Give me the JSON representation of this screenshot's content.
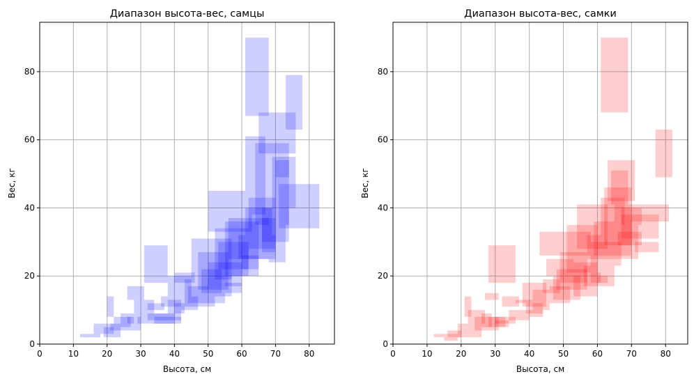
{
  "chart_data": [
    {
      "type": "rect-ranges",
      "title": "Диапазон высота-вес, самцы",
      "xlabel": "Высота, см",
      "ylabel": "Вес, кг",
      "xlim": [
        0,
        87.5
      ],
      "ylim": [
        0,
        94.5
      ],
      "xticks": [
        0,
        10,
        20,
        30,
        40,
        50,
        60,
        70,
        80
      ],
      "yticks": [
        0,
        20,
        40,
        60,
        80
      ],
      "grid": true,
      "color": "#0000ff",
      "alpha": 0.19,
      "ranges": [
        [
          61,
          68,
          67,
          90
        ],
        [
          73,
          78,
          63,
          79
        ],
        [
          65,
          76,
          56,
          68
        ],
        [
          61,
          67,
          45,
          61
        ],
        [
          64,
          74,
          35,
          59
        ],
        [
          71,
          83,
          34,
          47
        ],
        [
          69,
          76,
          40,
          55
        ],
        [
          70,
          74,
          49,
          54
        ],
        [
          50,
          63,
          33,
          45
        ],
        [
          45,
          57,
          19,
          31
        ],
        [
          52,
          62,
          20,
          34
        ],
        [
          47,
          56,
          16,
          27
        ],
        [
          56,
          68,
          25,
          37
        ],
        [
          55,
          65,
          20,
          36
        ],
        [
          53,
          62,
          22,
          30
        ],
        [
          50,
          60,
          17,
          24
        ],
        [
          62,
          70,
          28,
          43
        ],
        [
          66,
          74,
          30,
          40
        ],
        [
          59,
          70,
          25,
          32
        ],
        [
          61,
          69,
          32,
          40
        ],
        [
          66,
          70,
          27,
          37
        ],
        [
          52,
          57,
          14,
          20
        ],
        [
          48,
          54,
          15,
          22
        ],
        [
          43,
          52,
          11,
          19
        ],
        [
          44,
          55,
          12,
          17
        ],
        [
          31,
          38,
          18,
          29
        ],
        [
          38,
          45,
          14,
          20
        ],
        [
          40,
          46,
          18,
          21
        ],
        [
          26,
          31,
          13,
          17
        ],
        [
          28,
          34,
          8,
          13
        ],
        [
          36,
          42,
          11,
          14
        ],
        [
          32,
          37,
          10,
          12
        ],
        [
          38,
          42,
          7,
          13
        ],
        [
          40,
          43,
          9,
          12
        ],
        [
          20,
          22,
          8,
          14
        ],
        [
          22,
          27,
          5,
          8
        ],
        [
          21,
          26,
          4,
          6
        ],
        [
          26,
          30,
          4,
          8
        ],
        [
          29,
          38,
          6,
          8
        ],
        [
          34,
          40,
          6,
          9
        ],
        [
          32,
          38,
          7,
          9
        ],
        [
          38,
          42,
          6,
          8
        ],
        [
          16,
          22,
          3,
          6
        ],
        [
          19,
          24,
          2,
          5
        ],
        [
          12,
          15,
          2,
          3
        ],
        [
          15,
          18,
          2,
          3
        ],
        [
          24,
          28,
          6,
          9
        ],
        [
          42,
          47,
          10,
          14
        ],
        [
          55,
          60,
          15,
          18
        ],
        [
          60,
          65,
          22,
          26
        ],
        [
          63,
          67,
          38,
          45
        ],
        [
          68,
          73,
          24,
          35
        ]
      ]
    },
    {
      "type": "rect-ranges",
      "title": "Диапазон высота-вес, самки",
      "xlabel": "Высота, см",
      "ylabel": "Вес, кг",
      "xlim": [
        0,
        86.5
      ],
      "ylim": [
        0,
        94.5
      ],
      "xticks": [
        0,
        10,
        20,
        30,
        40,
        50,
        60,
        70,
        80
      ],
      "yticks": [
        0,
        20,
        40,
        60,
        80
      ],
      "grid": true,
      "color": "#ff0000",
      "alpha": 0.19,
      "ranges": [
        [
          61,
          69,
          68,
          90
        ],
        [
          77,
          82,
          49,
          63
        ],
        [
          63,
          71,
          42,
          54
        ],
        [
          67,
          73,
          35,
          40
        ],
        [
          65,
          81,
          36,
          41
        ],
        [
          67,
          78,
          31,
          38
        ],
        [
          66,
          73,
          29,
          33
        ],
        [
          54,
          63,
          28,
          41
        ],
        [
          43,
          58,
          26,
          33
        ],
        [
          51,
          60,
          21,
          35
        ],
        [
          45,
          53,
          20,
          25
        ],
        [
          49,
          57,
          18,
          27
        ],
        [
          57,
          68,
          25,
          32
        ],
        [
          47,
          55,
          13,
          20
        ],
        [
          48,
          57,
          16,
          22
        ],
        [
          56,
          65,
          17,
          23
        ],
        [
          58,
          67,
          23,
          30
        ],
        [
          59,
          70,
          26,
          36
        ],
        [
          61,
          68,
          32,
          43
        ],
        [
          62,
          70,
          29,
          46
        ],
        [
          53,
          60,
          14,
          24
        ],
        [
          58,
          61,
          18,
          21
        ],
        [
          60,
          63,
          18,
          20
        ],
        [
          28,
          36,
          18,
          29
        ],
        [
          27,
          31,
          13,
          15
        ],
        [
          32,
          37,
          11,
          14
        ],
        [
          38,
          45,
          11,
          18
        ],
        [
          41,
          46,
          10,
          16
        ],
        [
          39,
          44,
          9,
          12
        ],
        [
          34,
          40,
          7,
          10
        ],
        [
          40,
          44,
          8,
          10
        ],
        [
          21,
          23,
          8,
          14
        ],
        [
          22,
          27,
          6,
          10
        ],
        [
          24,
          31,
          4,
          8
        ],
        [
          26,
          29,
          5,
          9
        ],
        [
          28,
          33,
          5,
          8
        ],
        [
          30,
          34,
          5,
          7
        ],
        [
          16,
          20,
          2,
          4
        ],
        [
          19,
          26,
          2,
          6
        ],
        [
          15,
          19,
          1,
          3
        ],
        [
          12,
          15,
          2,
          3
        ],
        [
          30,
          36,
          6,
          8
        ],
        [
          46,
          52,
          12,
          17
        ],
        [
          44,
          49,
          15,
          19
        ],
        [
          68,
          72,
          25,
          35
        ],
        [
          36,
          41,
          12,
          13
        ],
        [
          64,
          69,
          41,
          51
        ],
        [
          71,
          78,
          27,
          30
        ]
      ]
    }
  ]
}
